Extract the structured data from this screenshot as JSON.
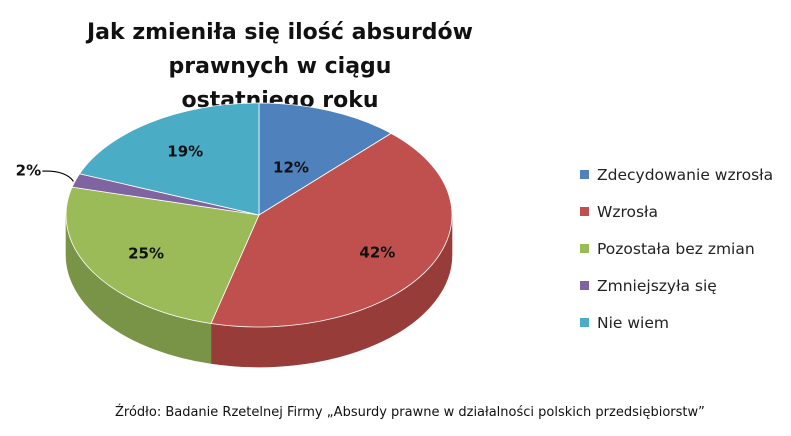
{
  "chart_data": {
    "type": "pie",
    "title": "Jak zmieniła się ilość absurdów prawnych w ciągu ostatniego roku",
    "title_lines": [
      "Jak zmieniła się ilość absurdów prawnych w ciągu",
      "ostatniego roku"
    ],
    "categories": [
      "Zdecydowanie wzrosła",
      "Wzrosła",
      "Pozostała bez zmian",
      "Zmniejszyła się",
      "Nie wiem"
    ],
    "values": [
      12,
      42,
      25,
      2,
      19
    ],
    "value_labels": [
      "12%",
      "42%",
      "25%",
      "2%",
      "19%"
    ],
    "colors": [
      "#4F81BD",
      "#C0504D",
      "#9BBB59",
      "#8064A2",
      "#4BACC6"
    ],
    "side_colors": [
      "#3D6596",
      "#973C39",
      "#7A9447",
      "#634D80",
      "#3A879B"
    ],
    "legend_position": "right",
    "style": "3d"
  },
  "source": "Źródło: Badanie Rzetelnej Firmy „Absurdy prawne w działalności polskich przedsiębiorstw”"
}
